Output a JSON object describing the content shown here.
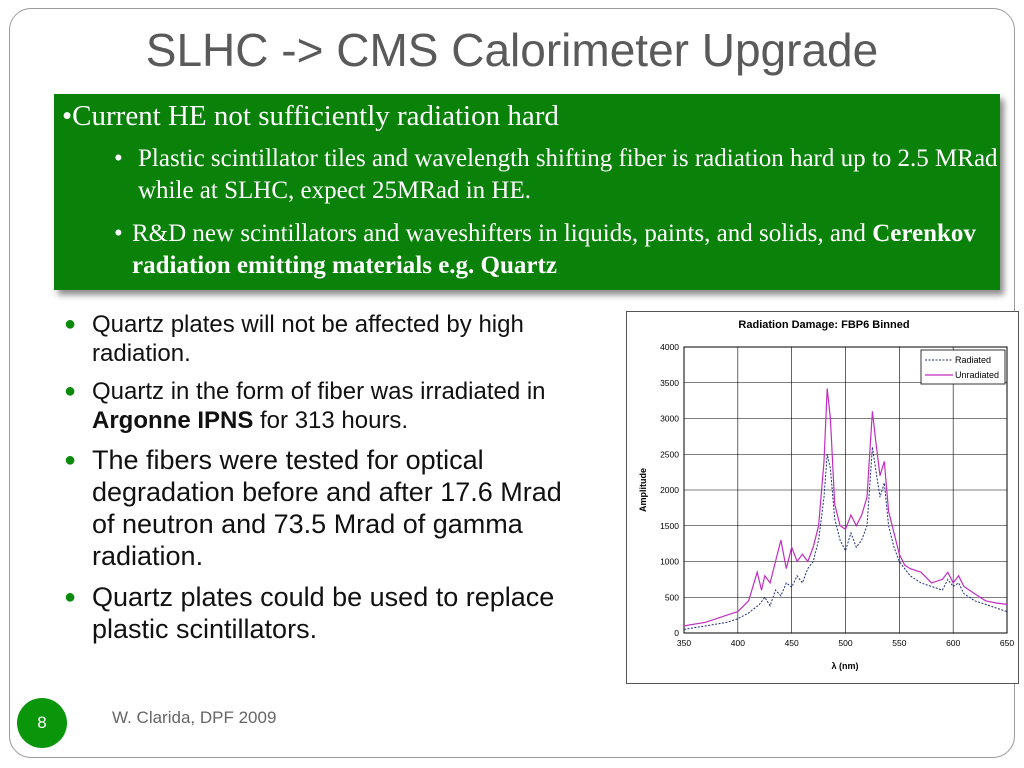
{
  "title": "SLHC -> CMS Calorimeter Upgrade",
  "green_box": {
    "main_bullet": "•",
    "main_text": "Current HE not sufficiently radiation hard",
    "sub_bullet": "•",
    "sub1_text": "Plastic scintillator tiles and wavelength shifting fiber is radiation hard up to 2.5 MRad while at SLHC, expect 25MRad in HE.",
    "sub2_text": "R&D new scintillators and waveshifters in liquids, paints, and solids, and ",
    "sub2_bold": "Cerenkov radiation emitting materials e.g. Quartz"
  },
  "bullets": {
    "b1": "Quartz plates will not be affected by high radiation.",
    "b2_pre": "Quartz in the form of fiber was irradiated in ",
    "b2_bold": "Argonne IPNS",
    "b2_post": " for 313 hours.",
    "b3": "The fibers were tested for optical degradation before and after 17.6 Mrad of neutron and 73.5 Mrad of gamma radiation.",
    "b4": "Quartz plates could be used to replace plastic scintillators."
  },
  "footer": {
    "page_number": "8",
    "author": "W. Clarida, DPF 2009"
  },
  "chart_data": {
    "type": "line",
    "title": "Radiation Damage: FBP6 Binned",
    "xlabel": "λ (nm)",
    "ylabel": "Amplitude",
    "xlim": [
      350,
      650
    ],
    "ylim": [
      0,
      4000
    ],
    "x_ticks": [
      "350",
      "400",
      "450",
      "500",
      "550",
      "600",
      "650"
    ],
    "y_ticks": [
      "0",
      "500",
      "1000",
      "1500",
      "2000",
      "2500",
      "3000",
      "3500",
      "4000"
    ],
    "grid": true,
    "legend_position": "top-right",
    "series": [
      {
        "name": "Radiated",
        "color": "#1f2f7a",
        "style": "dotted",
        "x": [
          350,
          370,
          390,
          400,
          410,
          420,
          425,
          430,
          435,
          440,
          445,
          450,
          455,
          460,
          465,
          470,
          475,
          480,
          483,
          486,
          490,
          495,
          500,
          505,
          510,
          515,
          520,
          525,
          528,
          532,
          536,
          540,
          545,
          550,
          555,
          560,
          570,
          580,
          590,
          595,
          600,
          605,
          610,
          620,
          630,
          640,
          650
        ],
        "y": [
          50,
          100,
          150,
          200,
          280,
          400,
          500,
          380,
          600,
          520,
          700,
          640,
          800,
          700,
          900,
          1000,
          1300,
          1900,
          2500,
          2300,
          1600,
          1300,
          1150,
          1400,
          1200,
          1300,
          1500,
          2600,
          2300,
          1900,
          2100,
          1500,
          1200,
          1000,
          900,
          800,
          700,
          650,
          600,
          750,
          650,
          700,
          550,
          450,
          400,
          350,
          300
        ]
      },
      {
        "name": "Unradiated",
        "color": "#c02ec0",
        "style": "solid",
        "x": [
          350,
          370,
          390,
          400,
          410,
          415,
          418,
          422,
          425,
          430,
          435,
          440,
          445,
          450,
          455,
          460,
          465,
          470,
          475,
          480,
          483,
          486,
          490,
          495,
          500,
          505,
          510,
          515,
          520,
          525,
          528,
          532,
          536,
          540,
          545,
          550,
          555,
          560,
          570,
          580,
          590,
          595,
          600,
          605,
          610,
          620,
          630,
          640,
          650
        ],
        "y": [
          100,
          150,
          250,
          300,
          450,
          700,
          850,
          600,
          800,
          700,
          1000,
          1300,
          900,
          1200,
          1000,
          1100,
          1000,
          1200,
          1500,
          2400,
          3420,
          3000,
          1800,
          1500,
          1450,
          1650,
          1500,
          1650,
          1900,
          3100,
          2700,
          2200,
          2400,
          1700,
          1400,
          1100,
          950,
          900,
          850,
          700,
          750,
          850,
          700,
          800,
          650,
          550,
          450,
          420,
          400
        ]
      }
    ]
  }
}
